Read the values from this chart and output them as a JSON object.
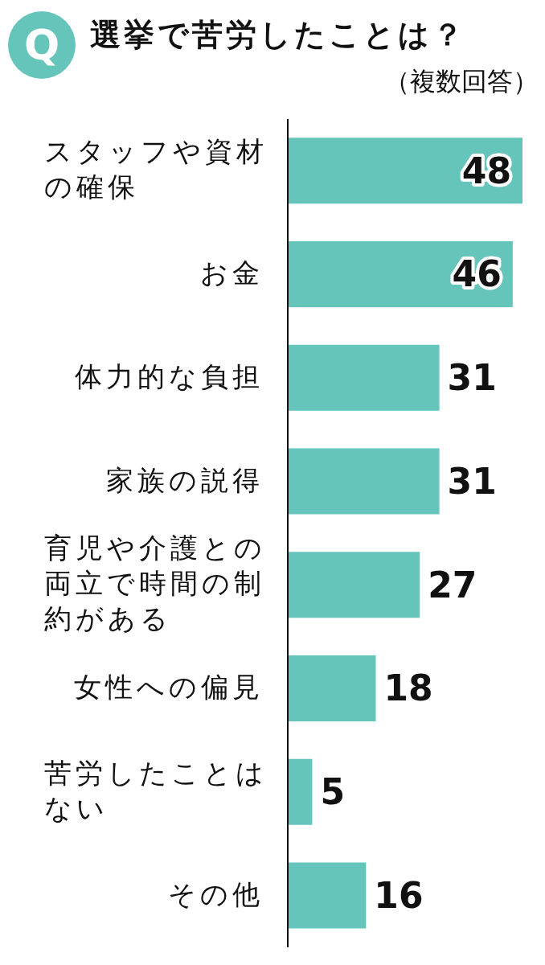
{
  "chart_data": {
    "type": "bar",
    "orientation": "horizontal",
    "title": "選挙で苦労したことは？",
    "subtitle": "（複数回答）",
    "annotations": [
      "Q"
    ],
    "categories": [
      "スタッフや資材の確保",
      "お金",
      "体力的な負担",
      "家族の説得",
      "育児や介護との両立で時間の制約がある",
      "女性への偏見",
      "苦労したことはない",
      "その他"
    ],
    "values": [
      48,
      46,
      31,
      31,
      27,
      18,
      5,
      16
    ],
    "color": "#66c5bb",
    "data_labels": true
  }
}
